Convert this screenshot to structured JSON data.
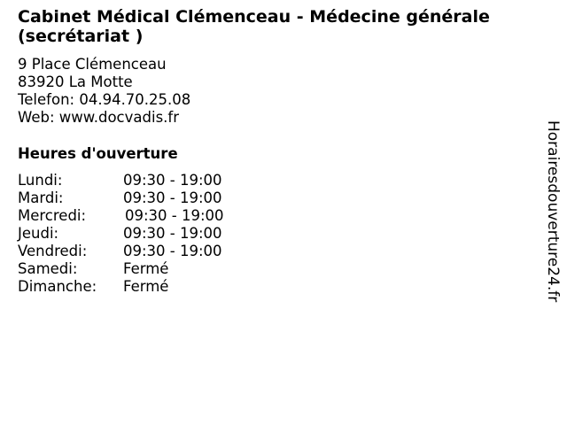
{
  "title": "Cabinet Médical Clémenceau - Médecine générale (secrétariat )",
  "address": {
    "street": "9 Place Clémenceau",
    "city": "83920 La Motte",
    "phone": "Telefon: 04.94.70.25.08",
    "web": "Web: www.docvadis.fr"
  },
  "hours_heading": "Heures d'ouverture",
  "hours": [
    {
      "day": "Lundi:",
      "time": "09:30 - 19:00"
    },
    {
      "day": "Mardi:",
      "time": "09:30 - 19:00"
    },
    {
      "day": "Mercredi:",
      "time": "09:30 - 19:00"
    },
    {
      "day": "Jeudi:",
      "time": "09:30 - 19:00"
    },
    {
      "day": "Vendredi:",
      "time": "09:30 - 19:00"
    },
    {
      "day": "Samedi:",
      "time": "Fermé"
    },
    {
      "day": "Dimanche:",
      "time": "Fermé"
    }
  ],
  "side_brand": "Horairesdouverture24.fr"
}
